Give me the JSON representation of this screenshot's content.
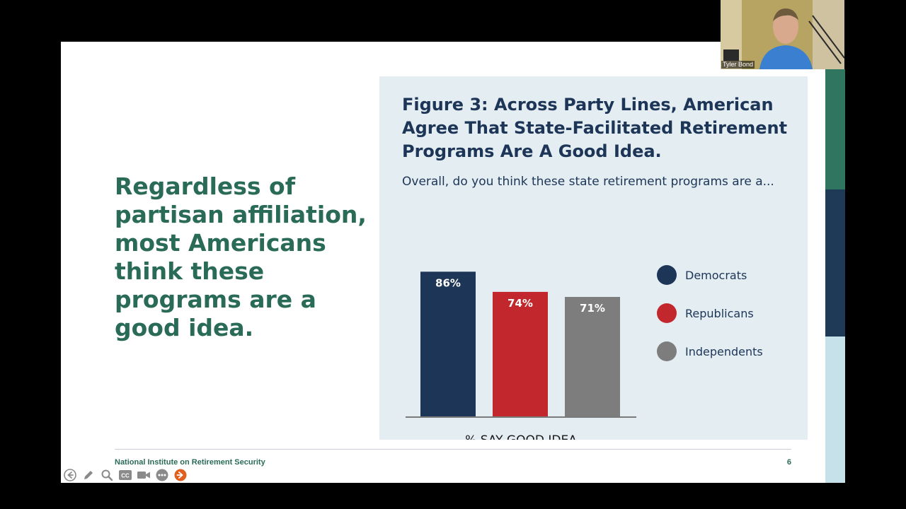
{
  "slide": {
    "headline": "Regardless of partisan affiliation, most Americans think these programs are a good idea.",
    "figure": {
      "label": "Figure 3:",
      "title": "Across Party Lines, American Agree That State-Facilitated Retirement Programs Are A Good Idea.",
      "subtitle": "Overall, do you think these state retirement programs are a..."
    },
    "footer": {
      "org": "National Institute on Retirement Security",
      "page_number": "6"
    }
  },
  "chart_data": {
    "type": "bar",
    "title": "Figure 3: Across Party Lines, American Agree That State-Facilitated Retirement Programs Are A Good Idea.",
    "xlabel": "% SAY GOOD IDEA",
    "ylabel": "",
    "ylim": [
      0,
      100
    ],
    "categories": [
      "Democrats",
      "Republicans",
      "Independents"
    ],
    "values": [
      86,
      74,
      71
    ],
    "data_labels": [
      "86%",
      "74%",
      "71%"
    ],
    "colors": [
      "#1d3557",
      "#c1272d",
      "#7d7d7d"
    ],
    "legend": [
      "Democrats",
      "Republicans",
      "Independents"
    ],
    "legend_position": "right",
    "grid": false
  },
  "video": {
    "participant_name": "Tyler Bond"
  },
  "toolbar": {
    "icons": [
      "back-icon",
      "pen-icon",
      "zoom-icon",
      "captions-icon",
      "video-icon",
      "more-icon",
      "next-icon"
    ]
  },
  "colors": {
    "brand_green": "#2a6b58",
    "navy": "#1d3557",
    "panel_bg": "#e3edf2",
    "band_green": "#2f7560",
    "band_navy": "#1f3a56",
    "band_light": "#c7e1ea"
  }
}
